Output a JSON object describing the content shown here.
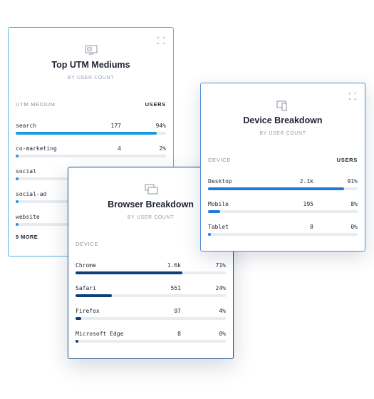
{
  "cards": [
    {
      "title": "Top UTM Mediums",
      "subtitle": "BY USER COUNT",
      "column_label": "UTM MEDIUM",
      "users_label": "USERS",
      "rows": [
        {
          "name": "search",
          "count": "177",
          "percent": 94,
          "percent_label": "94%"
        },
        {
          "name": "co-marketing",
          "count": "4",
          "percent": 2,
          "percent_label": "2%"
        },
        {
          "name": "social",
          "percent": 1
        },
        {
          "name": "social-ad",
          "percent": 1
        },
        {
          "name": "website",
          "percent": 1
        }
      ],
      "more": "9 MORE"
    },
    {
      "title": "Browser Breakdown",
      "subtitle": "BY USER COUNT",
      "column_label": "DEVICE",
      "rows": [
        {
          "name": "Chrome",
          "count": "1.6k",
          "percent": 71,
          "percent_label": "71%"
        },
        {
          "name": "Safari",
          "count": "551",
          "percent": 24,
          "percent_label": "24%"
        },
        {
          "name": "Firefox",
          "count": "97",
          "percent": 4,
          "percent_label": "4%"
        },
        {
          "name": "Microsoft Edge",
          "count": "8",
          "percent": 0,
          "percent_label": "0%"
        }
      ]
    },
    {
      "title": "Device Breakdown",
      "subtitle": "BY USER COUNT",
      "column_label": "DEVICE",
      "users_label": "USERS",
      "rows": [
        {
          "name": "Desktop",
          "count": "2.1k",
          "percent": 91,
          "percent_label": "91%"
        },
        {
          "name": "Mobile",
          "count": "195",
          "percent": 8,
          "percent_label": "8%"
        },
        {
          "name": "Tablet",
          "count": "8",
          "percent": 0,
          "percent_label": "0%"
        }
      ]
    }
  ]
}
